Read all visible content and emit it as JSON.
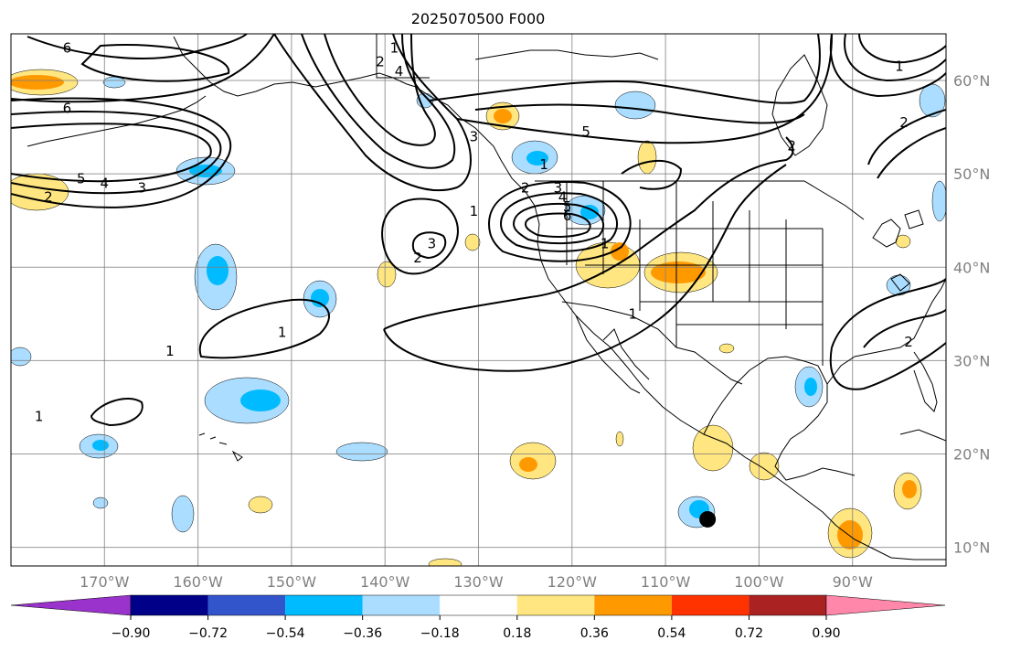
{
  "title": "2025070500 F000",
  "map": {
    "lon_range": [
      -180,
      -80
    ],
    "lat_range": [
      8,
      65
    ],
    "lon_ticks": [
      {
        "value": -170,
        "label": "170°W"
      },
      {
        "value": -160,
        "label": "160°W"
      },
      {
        "value": -150,
        "label": "150°W"
      },
      {
        "value": -140,
        "label": "140°W"
      },
      {
        "value": -130,
        "label": "130°W"
      },
      {
        "value": -120,
        "label": "120°W"
      },
      {
        "value": -110,
        "label": "110°W"
      },
      {
        "value": -100,
        "label": "100°W"
      },
      {
        "value": -90,
        "label": "90°W"
      }
    ],
    "lat_ticks": [
      {
        "value": 10,
        "label": "10°N"
      },
      {
        "value": 20,
        "label": "20°N"
      },
      {
        "value": 30,
        "label": "30°N"
      },
      {
        "value": 40,
        "label": "40°N"
      },
      {
        "value": 50,
        "label": "50°N"
      },
      {
        "value": 60,
        "label": "60°N"
      }
    ],
    "marker": {
      "lon": -105.5,
      "lat": 13,
      "color": "#000000"
    }
  },
  "contour_labels": [
    {
      "text": "6",
      "lon": -174,
      "lat": 63.5
    },
    {
      "text": "1",
      "lon": -139,
      "lat": 63.5
    },
    {
      "text": "4",
      "lon": -138.5,
      "lat": 61
    },
    {
      "text": "2",
      "lon": -140.5,
      "lat": 62
    },
    {
      "text": "6",
      "lon": -174,
      "lat": 57
    },
    {
      "text": "3",
      "lon": -130.5,
      "lat": 54
    },
    {
      "text": "5",
      "lon": -172.5,
      "lat": 49.5
    },
    {
      "text": "4",
      "lon": -170,
      "lat": 49
    },
    {
      "text": "3",
      "lon": -166,
      "lat": 48.5
    },
    {
      "text": "2",
      "lon": -176,
      "lat": 47.5
    },
    {
      "text": "5",
      "lon": -118.5,
      "lat": 54.5
    },
    {
      "text": "2",
      "lon": -96.5,
      "lat": 53
    },
    {
      "text": "1",
      "lon": -85,
      "lat": 61.5
    },
    {
      "text": "2",
      "lon": -84.5,
      "lat": 55.5
    },
    {
      "text": "1",
      "lon": -123,
      "lat": 51
    },
    {
      "text": "2",
      "lon": -125,
      "lat": 48.5
    },
    {
      "text": "3",
      "lon": -121.5,
      "lat": 48.5
    },
    {
      "text": "4",
      "lon": -121,
      "lat": 47.5
    },
    {
      "text": "5",
      "lon": -120.5,
      "lat": 46.5
    },
    {
      "text": "6",
      "lon": -120.5,
      "lat": 45.5
    },
    {
      "text": "1",
      "lon": -130.5,
      "lat": 46
    },
    {
      "text": "3",
      "lon": -135,
      "lat": 42.5
    },
    {
      "text": "2",
      "lon": -136.5,
      "lat": 41
    },
    {
      "text": "1",
      "lon": -116.5,
      "lat": 42.5
    },
    {
      "text": "1",
      "lon": -151,
      "lat": 33
    },
    {
      "text": "1",
      "lon": -163,
      "lat": 31
    },
    {
      "text": "1",
      "lon": -113.5,
      "lat": 35
    },
    {
      "text": "1",
      "lon": -177,
      "lat": 24
    },
    {
      "text": "2",
      "lon": -84,
      "lat": 32
    }
  ],
  "colorbar": {
    "ticks": [
      "−0.90",
      "−0.72",
      "−0.54",
      "−0.36",
      "−0.18",
      "0.18",
      "0.36",
      "0.54",
      "0.72",
      "0.90"
    ],
    "under_color": "#9933cc",
    "over_color": "#ff88aa",
    "bin_colors": [
      "#000088",
      "#3355cc",
      "#00bbff",
      "#aaddff",
      "#ffffff",
      "#ffe680",
      "#ff9900",
      "#ff3300",
      "#aa2222"
    ]
  }
}
